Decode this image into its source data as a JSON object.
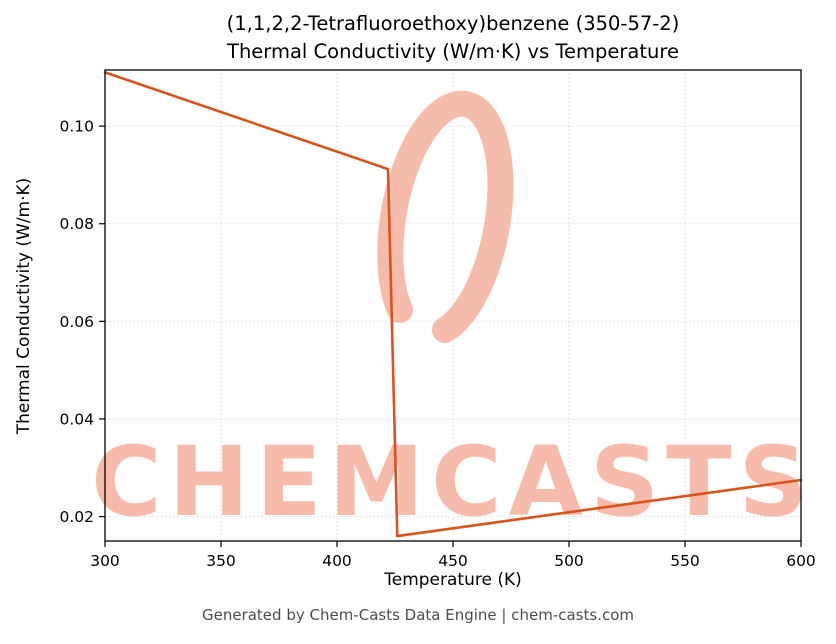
{
  "title": {
    "line1": "(1,1,2,2-Tetrafluoroethoxy)benzene (350-57-2)",
    "line2": "Thermal Conductivity (W/m·K) vs Temperature"
  },
  "footer": "Generated by Chem-Casts Data Engine | chem-casts.com",
  "watermark": {
    "text": "CHEMCASTS",
    "color": "#f5b09c"
  },
  "chart_data": {
    "type": "line",
    "title": "(1,1,2,2-Tetrafluoroethoxy)benzene (350-57-2) Thermal Conductivity (W/m·K) vs Temperature",
    "xlabel": "Temperature (K)",
    "ylabel": "Thermal Conductivity (W/m·K)",
    "xlim": [
      300,
      600
    ],
    "ylim": [
      0.015,
      0.1115
    ],
    "xticks": [
      300,
      350,
      400,
      450,
      500,
      550,
      600
    ],
    "xtick_labels": [
      "300",
      "350",
      "400",
      "450",
      "500",
      "550",
      "600"
    ],
    "yticks": [
      0.02,
      0.04,
      0.06,
      0.08,
      0.1
    ],
    "ytick_labels": [
      "0.02",
      "0.04",
      "0.06",
      "0.08",
      "0.10"
    ],
    "grid": true,
    "legend": "none",
    "series": [
      {
        "name": "Thermal conductivity (W/m·K)",
        "color": "#d9541c",
        "points": [
          [
            300,
            0.111
          ],
          [
            422,
            0.0912
          ],
          [
            426,
            0.016
          ],
          [
            600,
            0.0275
          ]
        ]
      }
    ]
  }
}
